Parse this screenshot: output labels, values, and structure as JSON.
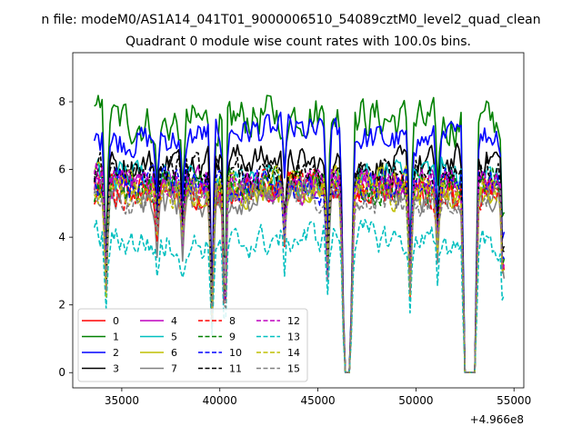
{
  "chart_data": {
    "type": "line",
    "suptitle": "n file: modeM0/AS1A14_041T01_9000006510_54089cztM0_level2_quad_clean",
    "title": "Quadrant 0 module wise count rates with 100.0s bins.",
    "xlabel": "",
    "ylabel": "",
    "x_offset_label": "+4.966e8",
    "xlim": [
      32500,
      55500
    ],
    "ylim": [
      -0.45,
      9.45
    ],
    "x_ticks": [
      35000,
      40000,
      45000,
      50000,
      55000
    ],
    "y_ticks": [
      0,
      2,
      4,
      6,
      8
    ],
    "x_tick_labels": [
      "35000",
      "40000",
      "45000",
      "50000",
      "55000"
    ],
    "y_tick_labels": [
      "0",
      "2",
      "4",
      "6",
      "8"
    ],
    "x_range": [
      33600,
      54500
    ],
    "bin_seconds": 100,
    "legend_position": "lower-left",
    "common_dips": [
      {
        "x": 34200,
        "depth": 0.55
      },
      {
        "x": 36800,
        "depth": 0.25
      },
      {
        "x": 38100,
        "depth": 0.3
      },
      {
        "x": 39600,
        "depth": 0.72
      },
      {
        "x": 40250,
        "depth": 0.85
      },
      {
        "x": 43300,
        "depth": 0.25
      },
      {
        "x": 45500,
        "depth": 0.45
      },
      {
        "x": 49700,
        "depth": 0.55
      },
      {
        "x": 51100,
        "depth": 0.3
      },
      {
        "x": 54450,
        "depth": 0.6
      }
    ],
    "zero_intervals": [
      [
        46350,
        46650
      ],
      [
        52500,
        53000
      ]
    ],
    "series": [
      {
        "name": "0",
        "color": "#ff0000",
        "dash": "solid",
        "mean": 5.4
      },
      {
        "name": "1",
        "color": "#008000",
        "dash": "solid",
        "mean": 7.5
      },
      {
        "name": "2",
        "color": "#0000ff",
        "dash": "solid",
        "mean": 7.0
      },
      {
        "name": "3",
        "color": "#000000",
        "dash": "solid",
        "mean": 6.2
      },
      {
        "name": "4",
        "color": "#bf00bf",
        "dash": "solid",
        "mean": 5.5
      },
      {
        "name": "5",
        "color": "#00bfbf",
        "dash": "solid",
        "mean": 5.7
      },
      {
        "name": "6",
        "color": "#bfbf00",
        "dash": "solid",
        "mean": 5.5
      },
      {
        "name": "7",
        "color": "#808080",
        "dash": "solid",
        "mean": 5.2
      },
      {
        "name": "8",
        "color": "#ff0000",
        "dash": "dashed",
        "mean": 5.4
      },
      {
        "name": "9",
        "color": "#008000",
        "dash": "dashed",
        "mean": 5.5
      },
      {
        "name": "10",
        "color": "#0000ff",
        "dash": "dashed",
        "mean": 5.5
      },
      {
        "name": "11",
        "color": "#000000",
        "dash": "dashed",
        "mean": 5.9
      },
      {
        "name": "12",
        "color": "#bf00bf",
        "dash": "dashed",
        "mean": 5.6
      },
      {
        "name": "13",
        "color": "#00bfbf",
        "dash": "dashed",
        "mean": 3.9
      },
      {
        "name": "14",
        "color": "#bfbf00",
        "dash": "dashed",
        "mean": 5.4
      },
      {
        "name": "15",
        "color": "#808080",
        "dash": "dashed",
        "mean": 5.2
      }
    ]
  }
}
